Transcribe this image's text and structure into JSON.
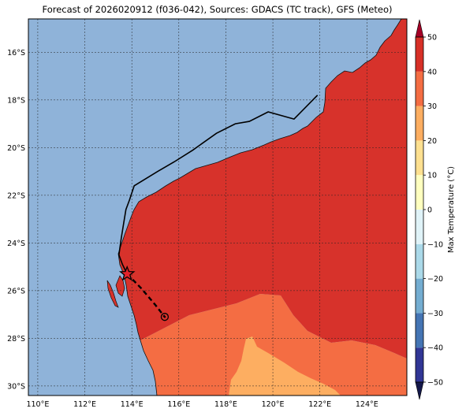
{
  "title": "Forecast of 2026020912 (f036-042), Sources: GDACS (TC track), GFS (Meteo)",
  "map": {
    "lon_range": [
      109.6,
      125.7
    ],
    "lat_range": [
      -30.4,
      -14.6
    ],
    "lon_ticks": [
      "110°E",
      "112°E",
      "114°E",
      "116°E",
      "118°E",
      "120°E",
      "122°E",
      "124°E"
    ],
    "lat_ticks": [
      "16°S",
      "18°S",
      "20°S",
      "22°S",
      "24°S",
      "26°S",
      "28°S",
      "30°S"
    ],
    "gridlines": true,
    "colors": {
      "ocean": "#8fb3d9",
      "band_30_40": "#d7322b",
      "band_20_30": "#f46d43",
      "band_10_20": "#fdae61",
      "track": "#000000"
    },
    "tc_track_past_lonlat": [
      [
        121.9,
        -17.8
      ],
      [
        120.9,
        -18.8
      ],
      [
        119.8,
        -18.5
      ],
      [
        119.0,
        -18.9
      ],
      [
        118.4,
        -19.0
      ],
      [
        117.6,
        -19.4
      ],
      [
        116.6,
        -20.1
      ],
      [
        115.8,
        -20.6
      ],
      [
        115.1,
        -21.0
      ],
      [
        114.6,
        -21.3
      ],
      [
        114.1,
        -21.6
      ],
      [
        113.9,
        -22.2
      ],
      [
        113.75,
        -22.6
      ],
      [
        113.65,
        -23.2
      ],
      [
        113.55,
        -23.8
      ],
      [
        113.45,
        -24.5
      ],
      [
        113.6,
        -24.9
      ],
      [
        113.8,
        -25.3
      ]
    ],
    "tc_track_forecast_lonlat": [
      [
        113.8,
        -25.3
      ],
      [
        114.4,
        -25.9
      ],
      [
        115.0,
        -26.6
      ],
      [
        115.4,
        -27.1
      ]
    ],
    "current_position_lonlat": [
      113.8,
      -25.3
    ],
    "forecast_position_lonlat": [
      115.4,
      -27.1
    ]
  },
  "colorbar": {
    "label": "Max Temperature (°C)",
    "levels": [
      -50,
      -40,
      -30,
      -20,
      -10,
      0,
      10,
      20,
      30,
      40,
      50
    ],
    "tick_labels": [
      "50",
      "40",
      "30",
      "20",
      "10",
      "0",
      "−10",
      "−20",
      "−30",
      "−40",
      "−50"
    ],
    "colors": [
      "#313695",
      "#4575b4",
      "#74add1",
      "#abd9e9",
      "#e0f3f8",
      "#ffffbf",
      "#fee090",
      "#fdae61",
      "#f46d43",
      "#d73027",
      "#a50026"
    ],
    "extend": "both"
  }
}
